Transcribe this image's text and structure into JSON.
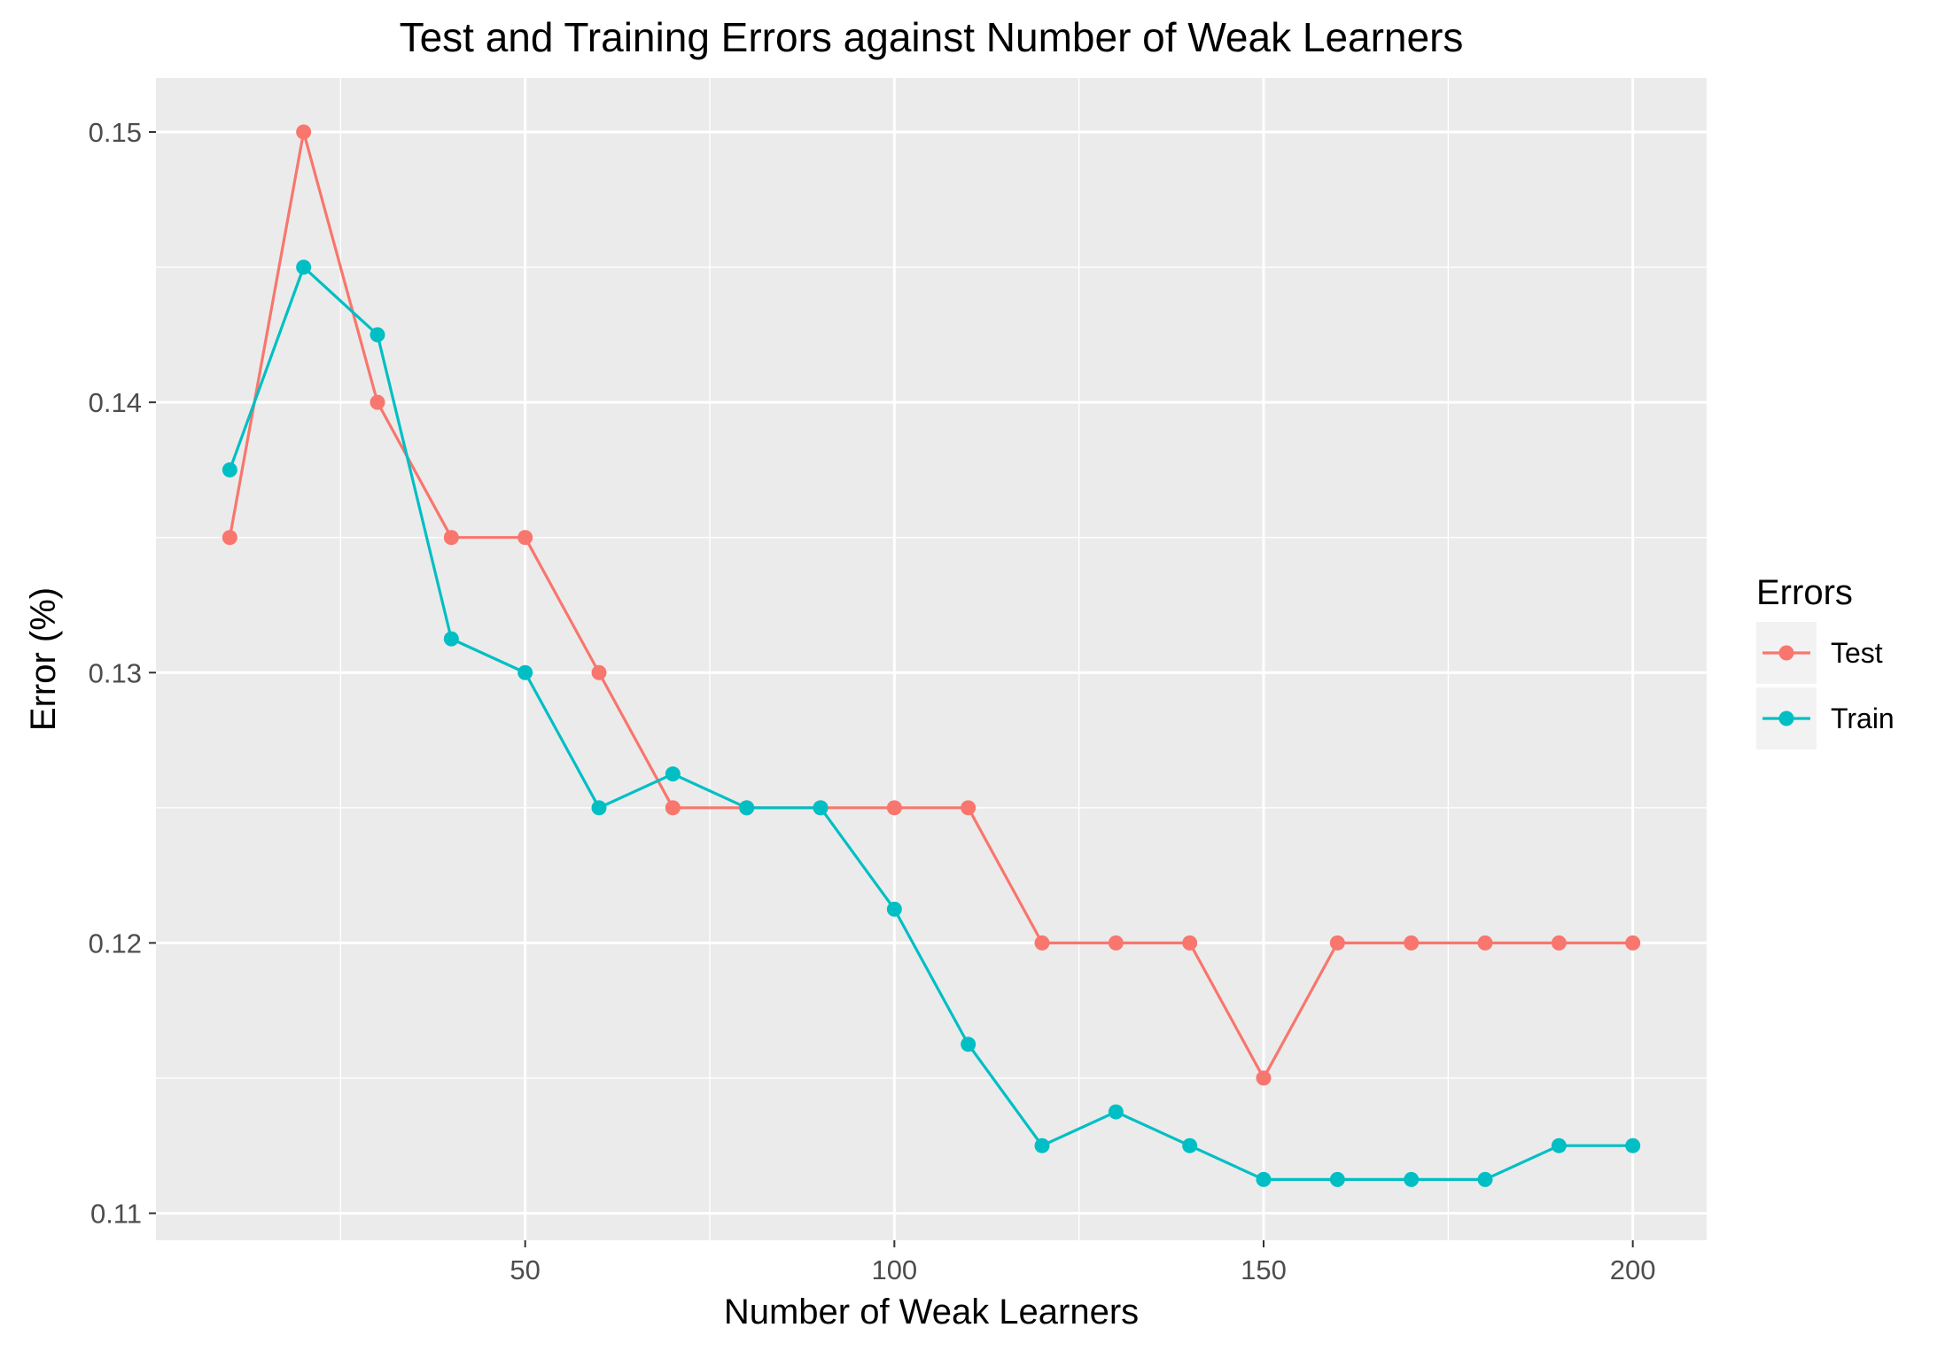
{
  "chart_data": {
    "type": "line",
    "title": "Test and Training Errors against Number of Weak Learners",
    "xlabel": "Number of Weak Learners",
    "ylabel": "Error (%)",
    "xlim": [
      0,
      210
    ],
    "ylim": [
      0.109,
      0.152
    ],
    "x_ticks": [
      50,
      100,
      150,
      200
    ],
    "x_tick_labels": [
      "50",
      "100",
      "150",
      "200"
    ],
    "y_ticks": [
      0.11,
      0.12,
      0.13,
      0.14,
      0.15
    ],
    "y_tick_labels": [
      "0.11",
      "0.12",
      "0.13",
      "0.14",
      "0.15"
    ],
    "grid": true,
    "legend_title": "Errors",
    "legend_position": "right",
    "x": [
      10,
      20,
      30,
      40,
      50,
      60,
      70,
      80,
      90,
      100,
      110,
      120,
      130,
      140,
      150,
      160,
      170,
      180,
      190,
      200
    ],
    "series": [
      {
        "name": "Test",
        "color": "#F8766D",
        "values": [
          0.135,
          0.15,
          0.14,
          0.135,
          0.135,
          0.13,
          0.125,
          0.125,
          0.125,
          0.125,
          0.125,
          0.12,
          0.12,
          0.12,
          0.115,
          0.12,
          0.12,
          0.12,
          0.12,
          0.12
        ]
      },
      {
        "name": "Train",
        "color": "#00BFC4",
        "values": [
          0.1375,
          0.145,
          0.1425,
          0.13125,
          0.13,
          0.125,
          0.12625,
          0.125,
          0.125,
          0.12125,
          0.11625,
          0.1125,
          0.11375,
          0.1125,
          0.11125,
          0.11125,
          0.11125,
          0.11125,
          0.1125,
          0.1125
        ]
      }
    ]
  }
}
